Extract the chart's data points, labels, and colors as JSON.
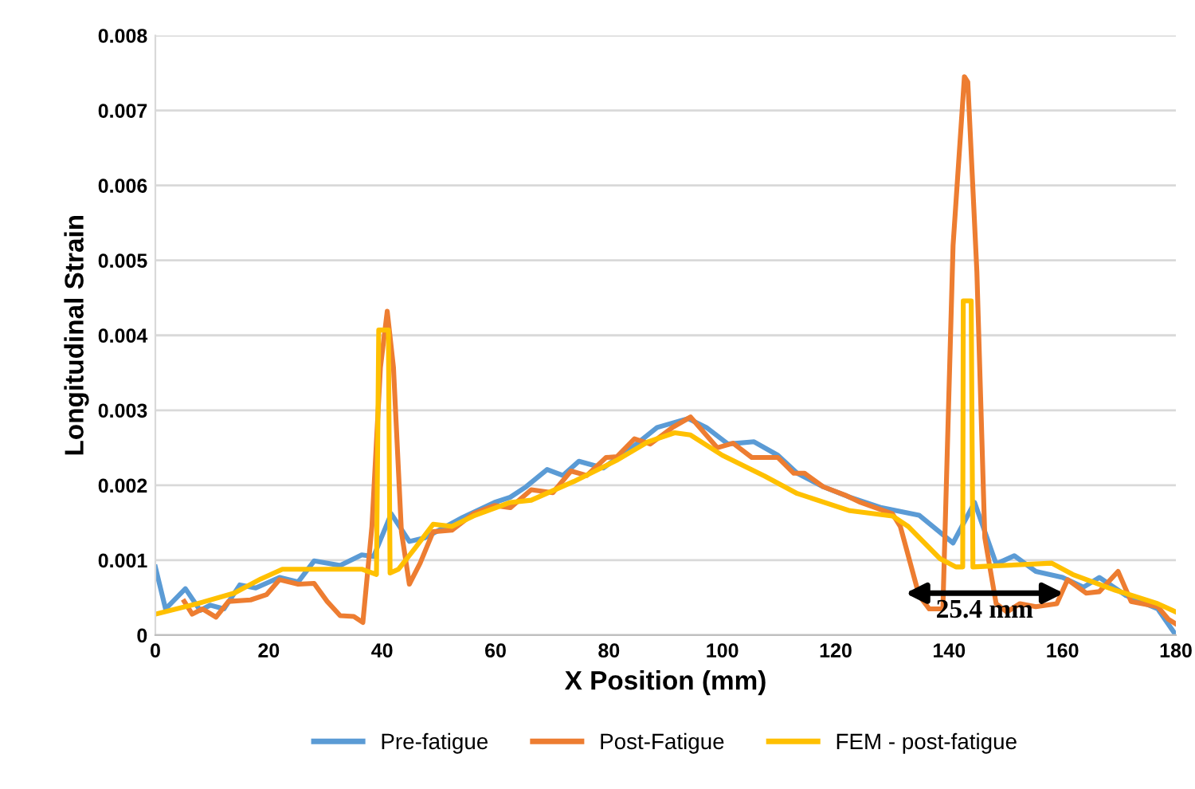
{
  "chart_data": {
    "type": "line",
    "xlabel": "X Position (mm)",
    "ylabel": "Longitudinal Strain",
    "xlim": [
      0,
      180
    ],
    "ylim": [
      0,
      0.008
    ],
    "xticks": [
      0,
      20,
      40,
      60,
      80,
      100,
      120,
      140,
      160,
      180
    ],
    "yticks": [
      0,
      0.001,
      0.002,
      0.003,
      0.004,
      0.005,
      0.006,
      0.007,
      0.008
    ],
    "grid": "y",
    "legend": "bottom",
    "marker": "none",
    "line_style": "solid",
    "annotations": [
      "25.4 mm"
    ],
    "series": [
      {
        "name": "Pre-fatigue",
        "color": "#5b9bd5",
        "x": [
          0,
          1.8,
          5.3,
          7.9,
          9.7,
          12.1,
          14.9,
          17.7,
          21.9,
          25.2,
          28,
          32.6,
          36.4,
          38.5,
          41.6,
          44.8,
          47.6,
          54.2,
          59.8,
          62.6,
          65.4,
          69.1,
          71.9,
          74.7,
          79,
          84.2,
          88.5,
          94,
          97.2,
          101,
          105.6,
          109.8,
          113.2,
          117.8,
          122.5,
          128.1,
          134.7,
          140.7,
          144.5,
          148.3,
          151.5,
          155.3,
          160,
          163.7,
          166.5,
          171.2,
          176.8,
          180
        ],
        "values": [
          0.00091,
          0.00035,
          0.00062,
          0.00033,
          0.0004,
          0.00035,
          0.00067,
          0.00063,
          0.00077,
          0.00071,
          0.00099,
          0.00093,
          0.00107,
          0.00105,
          0.00162,
          0.00125,
          0.0013,
          0.00157,
          0.00177,
          0.00184,
          0.00198,
          0.00221,
          0.00213,
          0.00232,
          0.00223,
          0.00251,
          0.00277,
          0.00289,
          0.00277,
          0.00255,
          0.00258,
          0.0024,
          0.00216,
          0.00198,
          0.00184,
          0.0017,
          0.0016,
          0.00123,
          0.00177,
          0.00095,
          0.00106,
          0.00085,
          0.00077,
          0.00064,
          0.00077,
          0.00053,
          0.00035,
          0
        ]
      },
      {
        "name": "Post-Fatigue",
        "color": "#ed7d31",
        "x": [
          5.1,
          6.5,
          8.3,
          10.7,
          12.9,
          16.8,
          19.6,
          21.9,
          25.2,
          28,
          30.3,
          32.6,
          35,
          36.6,
          38.2,
          39.7,
          40.9,
          42,
          43.4,
          44.8,
          46.7,
          49,
          52.3,
          56.1,
          59.8,
          62.6,
          66.3,
          70.1,
          73.3,
          76.1,
          79.5,
          81.4,
          84.5,
          87.3,
          91.2,
          94.4,
          99.1,
          101.9,
          105.2,
          109.8,
          112.6,
          114.5,
          117.8,
          121.6,
          124.4,
          130,
          131.4,
          134.7,
          136.5,
          138.9,
          140.7,
          142.7,
          143.3,
          144.9,
          146.3,
          148.3,
          150.2,
          152.5,
          155.3,
          159,
          160.9,
          164.2,
          166.5,
          169.8,
          172.1,
          176.8,
          178.7,
          180
        ],
        "values": [
          0.00045,
          0.00028,
          0.00035,
          0.00024,
          0.00045,
          0.00047,
          0.00054,
          0.00074,
          0.00068,
          0.00069,
          0.00045,
          0.00026,
          0.00025,
          0.00017,
          0.00145,
          0.00357,
          0.00432,
          0.00357,
          0.00138,
          0.00068,
          0.00096,
          0.00138,
          0.0014,
          0.00162,
          0.00173,
          0.0017,
          0.00194,
          0.0019,
          0.00219,
          0.00213,
          0.00237,
          0.00238,
          0.00262,
          0.00255,
          0.00277,
          0.00291,
          0.0025,
          0.00256,
          0.00237,
          0.00237,
          0.00216,
          0.00216,
          0.00198,
          0.00187,
          0.00177,
          0.00162,
          0.00145,
          0.00053,
          0.00035,
          0.00035,
          0.0052,
          0.00745,
          0.00738,
          0.00485,
          0.0013,
          0.00042,
          0.00031,
          0.00042,
          0.00038,
          0.00042,
          0.00074,
          0.00056,
          0.00058,
          0.00085,
          0.00045,
          0.00038,
          0.00021,
          0.00015
        ]
      },
      {
        "name": "FEM - post-fatigue",
        "color": "#ffc000",
        "x": [
          0,
          7.4,
          13.9,
          18.6,
          22.4,
          28,
          36.4,
          39,
          39.4,
          41.1,
          41.4,
          42.9,
          45.8,
          49,
          52.3,
          56.1,
          62.6,
          66.3,
          73.8,
          81.3,
          86.9,
          91.6,
          94.4,
          100,
          107.5,
          113.2,
          122.5,
          130,
          132.8,
          138.4,
          141.2,
          142.4,
          142.5,
          143.9,
          144.2,
          146.9,
          158.1,
          161.8,
          169.3,
          176.8,
          180
        ],
        "values": [
          0.00028,
          0.00042,
          0.00056,
          0.00075,
          0.00088,
          0.00088,
          0.00088,
          0.00081,
          0.00407,
          0.00407,
          0.00083,
          0.00088,
          0.00116,
          0.00148,
          0.00145,
          0.00159,
          0.00177,
          0.0018,
          0.00205,
          0.00233,
          0.00258,
          0.0027,
          0.00267,
          0.0024,
          0.00212,
          0.00189,
          0.00166,
          0.00159,
          0.00145,
          0.00102,
          0.00091,
          0.00091,
          0.00446,
          0.00446,
          0.00091,
          0.00092,
          0.00096,
          0.00081,
          0.0006,
          0.00042,
          0.00031
        ]
      }
    ]
  }
}
